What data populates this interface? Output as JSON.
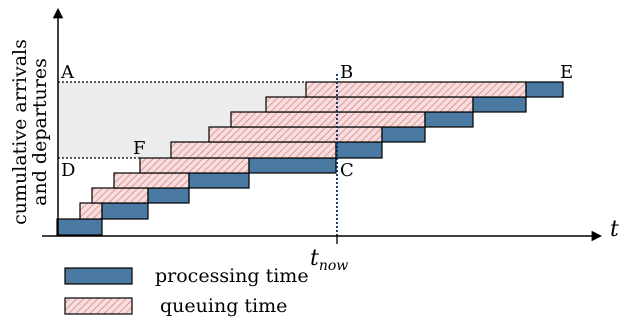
{
  "axes": {
    "y_label_line1": "cumulative arrivals",
    "y_label_line2": "and departures",
    "x_label": "t",
    "t_now_label": "t",
    "t_now_subscript": "now"
  },
  "points": {
    "A": "A",
    "B": "B",
    "C": "C",
    "D": "D",
    "E": "E",
    "F": "F"
  },
  "legend": {
    "processing": "processing time",
    "queuing": "queuing time"
  },
  "colors": {
    "processing": "#4a7aa2",
    "queuing_hatch": "#d97777",
    "queuing_bg": "#f7dede",
    "area": "#ececec"
  }
}
